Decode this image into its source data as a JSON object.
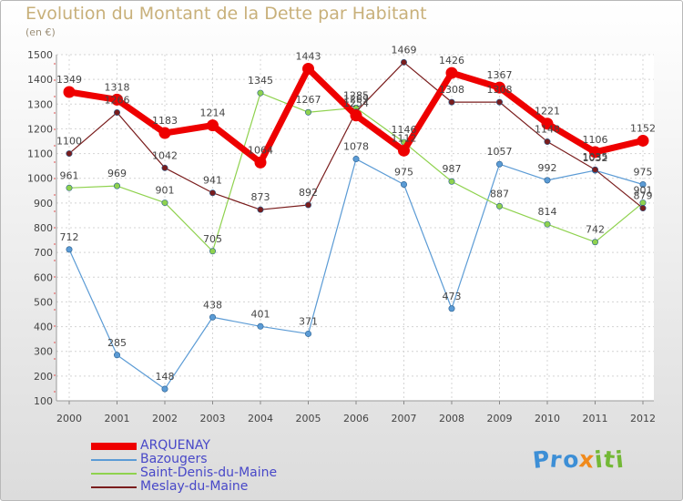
{
  "title": "Evolution du Montant de la Dette par Habitant",
  "subtitle": "(en €)",
  "logo": {
    "letters": [
      {
        "ch": "P",
        "color": "#3d8fd6"
      },
      {
        "ch": "r",
        "color": "#3d8fd6"
      },
      {
        "ch": "o",
        "color": "#3d8fd6"
      },
      {
        "ch": "x",
        "color": "#f08a1c"
      },
      {
        "ch": "i",
        "color": "#73b836"
      },
      {
        "ch": "t",
        "color": "#73b836"
      },
      {
        "ch": "i",
        "color": "#73b836"
      }
    ]
  },
  "chart_data": {
    "type": "line",
    "title": "Evolution du Montant de la Dette par Habitant",
    "subtitle": "(en €)",
    "xlabel": "",
    "ylabel": "",
    "ylim": [
      100,
      1500
    ],
    "yticks": [
      100,
      200,
      300,
      400,
      500,
      600,
      700,
      800,
      900,
      1000,
      1100,
      1200,
      1300,
      1400,
      1500
    ],
    "grid": true,
    "legend_position": "bottom-left",
    "x": [
      "2000",
      "2001",
      "2002",
      "2003",
      "2004",
      "2005",
      "2006",
      "2007",
      "2008",
      "2009",
      "2010",
      "2011",
      "2012"
    ],
    "series": [
      {
        "name": "ARQUENAY",
        "color": "#ee0000",
        "width": 7,
        "values": [
          1349,
          1318,
          1183,
          1214,
          1064,
          1443,
          1254,
          1112,
          1426,
          1367,
          1221,
          1106,
          1152
        ]
      },
      {
        "name": "Bazougers",
        "color": "#5b9bd5",
        "width": 1.2,
        "values": [
          712,
          285,
          148,
          438,
          401,
          371,
          1078,
          975,
          473,
          1057,
          992,
          1032,
          975
        ]
      },
      {
        "name": "Saint-Denis-du-Maine",
        "color": "#8fd24e",
        "width": 1.2,
        "values": [
          961,
          969,
          901,
          705,
          1345,
          1267,
          1285,
          1146,
          987,
          887,
          814,
          742,
          901
        ]
      },
      {
        "name": "Meslay-du-Maine",
        "color": "#7a1d1d",
        "width": 1.2,
        "values": [
          1100,
          1266,
          1042,
          941,
          873,
          892,
          1269,
          1469,
          1308,
          1308,
          1148,
          1035,
          879
        ]
      }
    ]
  }
}
